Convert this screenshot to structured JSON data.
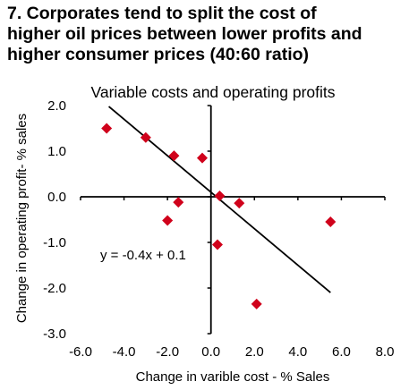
{
  "figure": {
    "title_lines": [
      "7. Corporates tend to split the cost of",
      "higher oil prices between lower profits and",
      "higher consumer prices (40:60 ratio)"
    ]
  },
  "chart_data": {
    "type": "scatter",
    "title": "Variable costs and operating profits",
    "xlabel": "Change in varible cost - % Sales",
    "ylabel": "Change in operating profit- % sales",
    "xlim": [
      -6.0,
      8.0
    ],
    "ylim": [
      -3.0,
      2.0
    ],
    "x_ticks": [
      "-6.0",
      "-4.0",
      "-2.0",
      "0.0",
      "2.0",
      "4.0",
      "6.0",
      "8.0"
    ],
    "y_ticks": [
      "2.0",
      "1.0",
      "0.0",
      "-1.0",
      "-2.0",
      "-3.0"
    ],
    "x_tick_values": [
      -6,
      -4,
      -2,
      0,
      2,
      4,
      6,
      8
    ],
    "y_tick_values": [
      2,
      1,
      0,
      -1,
      -2,
      -3
    ],
    "marker_color": "#d0021b",
    "points": [
      {
        "x": -4.8,
        "y": 1.5
      },
      {
        "x": -3.0,
        "y": 1.3
      },
      {
        "x": -1.7,
        "y": 0.9
      },
      {
        "x": -0.4,
        "y": 0.85
      },
      {
        "x": 0.4,
        "y": 0.02
      },
      {
        "x": -1.5,
        "y": -0.12
      },
      {
        "x": 1.3,
        "y": -0.14
      },
      {
        "x": -2.0,
        "y": -0.52
      },
      {
        "x": 0.3,
        "y": -1.05
      },
      {
        "x": 5.5,
        "y": -0.55
      },
      {
        "x": 2.1,
        "y": -2.35
      }
    ],
    "trendline": {
      "equation": "y = -0.4x + 0.1",
      "x_start": -4.7,
      "x_end": 5.5
    }
  }
}
